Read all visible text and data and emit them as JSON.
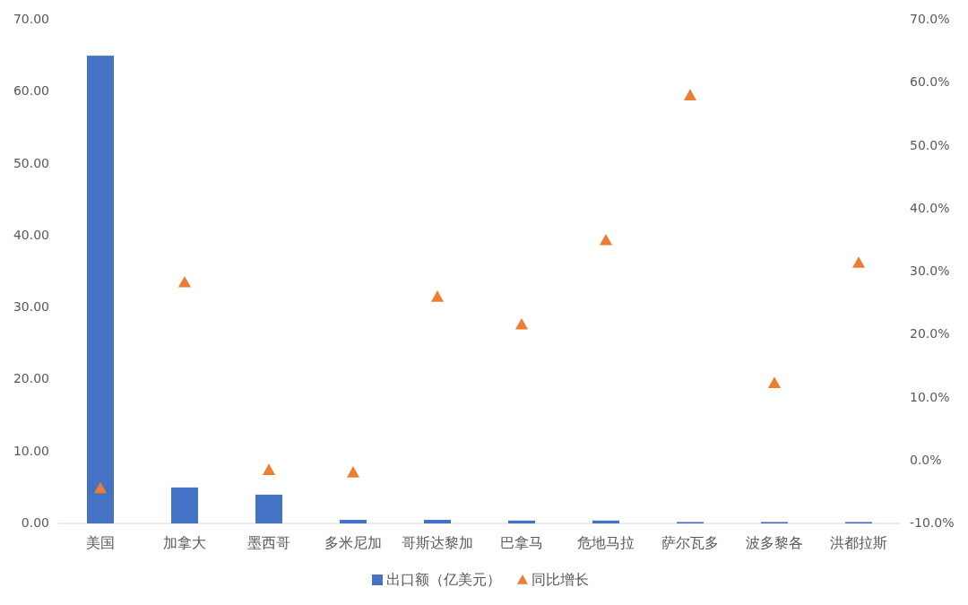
{
  "chart_data": {
    "type": "bar",
    "categories": [
      "美国",
      "加拿大",
      "墨西哥",
      "多米尼加",
      "哥斯达黎加",
      "巴拿马",
      "危地马拉",
      "萨尔瓦多",
      "波多黎各",
      "洪都拉斯"
    ],
    "series": [
      {
        "name": "出口额（亿美元）",
        "color": "#4472c4",
        "values": [
          65.0,
          5.0,
          4.0,
          0.5,
          0.5,
          0.4,
          0.4,
          0.2,
          0.2,
          0.2
        ]
      },
      {
        "name": "同比增长",
        "type": "scatter",
        "axis": "y2",
        "marker": "triangle",
        "color": "#ed7d31",
        "values": [
          -4.4,
          28.3,
          -1.5,
          -1.9,
          26.0,
          21.6,
          35.0,
          58.0,
          12.3,
          31.4
        ]
      }
    ],
    "ylim": [
      0,
      70
    ],
    "yticks": [
      {
        "value": 0,
        "label": "0.00"
      },
      {
        "value": 10,
        "label": "10.00"
      },
      {
        "value": 20,
        "label": "20.00"
      },
      {
        "value": 30,
        "label": "30.00"
      },
      {
        "value": 40,
        "label": "40.00"
      },
      {
        "value": 50,
        "label": "50.00"
      },
      {
        "value": 60,
        "label": "60.00"
      },
      {
        "value": 70,
        "label": "70.00"
      }
    ],
    "y2lim": [
      -10,
      70
    ],
    "y2ticks": [
      {
        "value": -10,
        "label": "-10.0%"
      },
      {
        "value": 0,
        "label": "0.0%"
      },
      {
        "value": 10,
        "label": "10.0%"
      },
      {
        "value": 20,
        "label": "20.0%"
      },
      {
        "value": 30,
        "label": "30.0%"
      },
      {
        "value": 40,
        "label": "40.0%"
      },
      {
        "value": 50,
        "label": "50.0%"
      },
      {
        "value": 60,
        "label": "60.0%"
      },
      {
        "value": 70,
        "label": "70.0%"
      }
    ],
    "grid": false,
    "legend": "bottom"
  }
}
